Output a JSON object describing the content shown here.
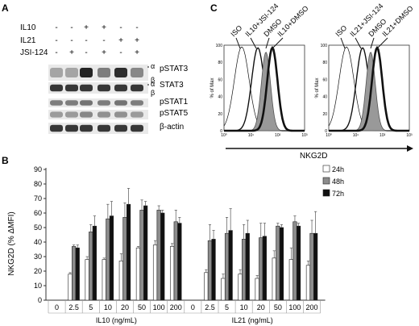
{
  "panels": {
    "a": "A",
    "b": "B",
    "c": "C"
  },
  "blot": {
    "treatments": [
      {
        "label": "IL10",
        "marks": [
          "-",
          "-",
          "+",
          "+",
          "-",
          "-"
        ]
      },
      {
        "label": "IL21",
        "marks": [
          "-",
          "-",
          "-",
          "-",
          "+",
          "+"
        ]
      },
      {
        "label": "JSI-124",
        "marks": [
          "-",
          "+",
          "-",
          "+",
          "-",
          "+"
        ]
      }
    ],
    "bands": [
      {
        "label": "pSTAT3",
        "isoforms": [
          "α",
          "β"
        ]
      },
      {
        "label": "STAT3",
        "isoforms": [
          "α",
          "β"
        ]
      },
      {
        "label": "pSTAT1",
        "isoforms": []
      },
      {
        "label": "pSTAT5",
        "isoforms": []
      },
      {
        "label": "β-actin",
        "isoforms": []
      }
    ],
    "band_intensity": [
      [
        0.35,
        0.35,
        1.0,
        0.55,
        0.95,
        0.5
      ],
      [
        0.9,
        0.9,
        0.9,
        0.9,
        0.9,
        0.9
      ],
      [
        0.55,
        0.55,
        0.6,
        0.55,
        0.6,
        0.55
      ],
      [
        0.4,
        0.4,
        0.5,
        0.45,
        0.45,
        0.4
      ],
      [
        0.9,
        0.9,
        0.9,
        0.9,
        0.9,
        0.9
      ]
    ]
  },
  "flow": {
    "y_axis_label": "% of Max",
    "x_axis_label": "NKG2D",
    "y_ticks": [
      "0",
      "20",
      "40",
      "60",
      "80",
      "100"
    ],
    "x_ticks": [
      "10⁰",
      "10¹",
      "10²",
      "10³"
    ],
    "left_labels": [
      "ISO",
      "IL10+JSI-124",
      "DMSO",
      "IL10+DMSO"
    ],
    "right_labels": [
      "ISO",
      "IL21+JSI-124",
      "DMSO",
      "IL21+DMSO"
    ]
  },
  "colors": {
    "h24": "#ffffff",
    "h48": "#8c8c8c",
    "h72": "#111111",
    "iso_fill": "#999999"
  },
  "chart_data": {
    "type": "bar",
    "ylabel": "NKG2D (% ΔMFI)",
    "ylim": [
      0,
      90
    ],
    "y_ticks": [
      0,
      10,
      20,
      30,
      40,
      50,
      60,
      70,
      80,
      90
    ],
    "grid": false,
    "legend_position": "right",
    "groups": [
      {
        "label": "IL10 (ng/mL)",
        "categories": [
          "0",
          "2.5",
          "5",
          "10",
          "20",
          "50",
          "100",
          "200"
        ]
      },
      {
        "label": "IL21 (ng/mL)",
        "categories": [
          "0",
          "2.5",
          "5",
          "10",
          "20",
          "50",
          "100",
          "200"
        ]
      }
    ],
    "categories": [
      "0",
      "2.5",
      "5",
      "10",
      "20",
      "50",
      "100",
      "200",
      "0",
      "2.5",
      "5",
      "10",
      "20",
      "50",
      "100",
      "200"
    ],
    "series": [
      {
        "name": "24h",
        "values": [
          0,
          18,
          28,
          28,
          27,
          36,
          38,
          37,
          0,
          19,
          15,
          18,
          15,
          29,
          28,
          24
        ],
        "errors": [
          0,
          1,
          2,
          1,
          5,
          1,
          3,
          2,
          0,
          2,
          3,
          3,
          2,
          5,
          8,
          3
        ]
      },
      {
        "name": "48h",
        "values": [
          0,
          37,
          47,
          56,
          57,
          62,
          62,
          54,
          0,
          41,
          46,
          42,
          43,
          51,
          54,
          46
        ],
        "errors": [
          0,
          1,
          5,
          10,
          10,
          7,
          3,
          8,
          0,
          11,
          11,
          10,
          10,
          2,
          4,
          9
        ]
      },
      {
        "name": "72h",
        "values": [
          0,
          36,
          51,
          58,
          66,
          65,
          60,
          53,
          0,
          42,
          48,
          46,
          44,
          50,
          51,
          46
        ],
        "errors": [
          0,
          2,
          7,
          10,
          11,
          3,
          2,
          4,
          0,
          6,
          15,
          9,
          9,
          2,
          2,
          15
        ]
      }
    ]
  }
}
